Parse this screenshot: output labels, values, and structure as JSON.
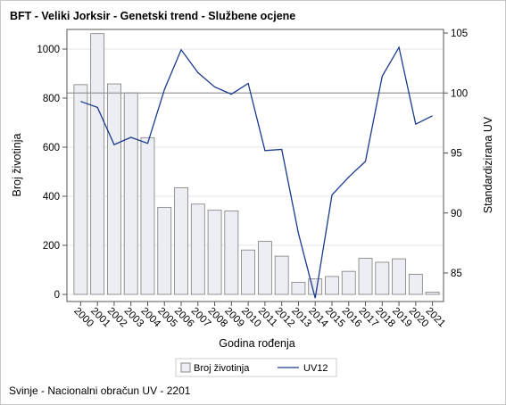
{
  "chart_data": {
    "type": "bar+line",
    "title": "BFT - Veliki Jorksir - Genetski trend - Službene ocjene",
    "footnote": "Svinje - Nacionalni obračun UV - 2201",
    "xlabel": "Godina rođenja",
    "ylabel_left": "Broj životinja",
    "ylabel_right": "Standardizirana UV",
    "categories": [
      "2000",
      "2001",
      "2002",
      "2003",
      "2004",
      "2005",
      "2006",
      "2007",
      "2008",
      "2009",
      "2010",
      "2011",
      "2012",
      "2013",
      "2014",
      "2015",
      "2016",
      "2017",
      "2018",
      "2019",
      "2020",
      "2021"
    ],
    "series": [
      {
        "name": "Broj životinja",
        "type": "bar",
        "axis": "left",
        "color": "#eceef3",
        "values": [
          855,
          1063,
          858,
          822,
          639,
          355,
          435,
          368,
          343,
          340,
          181,
          216,
          156,
          49,
          63,
          73,
          94,
          147,
          131,
          145,
          82,
          9
        ]
      },
      {
        "name": "UV12",
        "type": "line",
        "axis": "right",
        "color": "#1a3a8c",
        "values": [
          99.3,
          98.8,
          95.7,
          96.3,
          95.8,
          100.3,
          103.6,
          101.7,
          100.5,
          99.9,
          100.8,
          95.2,
          95.3,
          88.3,
          82.9,
          91.5,
          93.0,
          94.3,
          101.4,
          103.8,
          97.4,
          98.1
        ]
      }
    ],
    "ylim_left": [
      0,
      1080
    ],
    "yticks_left": [
      "0",
      "200",
      "400",
      "600",
      "800",
      "1000"
    ],
    "ylim_right": [
      82.9,
      105.9
    ],
    "yticks_right": [
      "85",
      "90",
      "95",
      "100",
      "105"
    ],
    "reference_line_right": 100,
    "legend": [
      "Broj životinja",
      "UV12"
    ],
    "legend_position": "bottom",
    "grid": true
  }
}
